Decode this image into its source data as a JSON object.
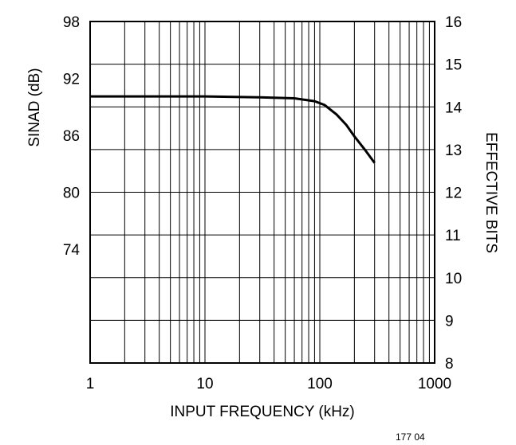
{
  "chart_data": {
    "type": "line",
    "title": "",
    "xlabel": "INPUT FREQUENCY (kHz)",
    "ylabel": "SINAD (dB)",
    "y2label": "EFFECTIVE BITS",
    "x_scale": "log",
    "xlim": [
      1,
      1000
    ],
    "ylim": [
      62,
      98
    ],
    "y2lim": [
      8,
      16
    ],
    "grid": true,
    "x_ticks": [
      "1",
      "10",
      "100",
      "1000"
    ],
    "y_ticks": [
      {
        "label": "98",
        "value": 98
      },
      {
        "label": "92",
        "value": 92
      },
      {
        "label": "86",
        "value": 86
      },
      {
        "label": "80",
        "value": 80
      },
      {
        "label": "74",
        "value": 74
      }
    ],
    "y2_ticks": [
      "16",
      "15",
      "14",
      "13",
      "12",
      "11",
      "10",
      "9",
      "8"
    ],
    "series": [
      {
        "name": "",
        "color": "#000000",
        "x": [
          1,
          3,
          10,
          30,
          60,
          90,
          110,
          140,
          170,
          200,
          250,
          300
        ],
        "y": [
          90.1,
          90.1,
          90.1,
          90.0,
          89.9,
          89.6,
          89.2,
          88.2,
          87.1,
          85.9,
          84.4,
          83.1
        ]
      }
    ]
  },
  "figure_code": "177  04"
}
